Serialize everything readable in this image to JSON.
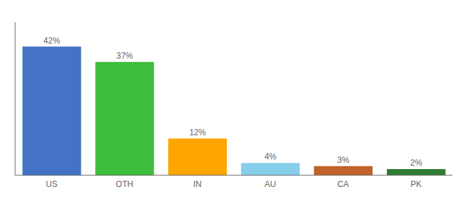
{
  "chart_data": {
    "type": "bar",
    "categories": [
      "US",
      "OTH",
      "IN",
      "AU",
      "CA",
      "PK"
    ],
    "values": [
      42,
      37,
      12,
      4,
      3,
      2
    ],
    "value_labels": [
      "42%",
      "37%",
      "12%",
      "4%",
      "3%",
      "2%"
    ],
    "colors": [
      "#4472C4",
      "#3DBE3D",
      "#FFA500",
      "#87CEEB",
      "#C0622A",
      "#2E7D32"
    ],
    "ylim": [
      0,
      50
    ],
    "data_labels": true,
    "tick_labels": "x"
  }
}
